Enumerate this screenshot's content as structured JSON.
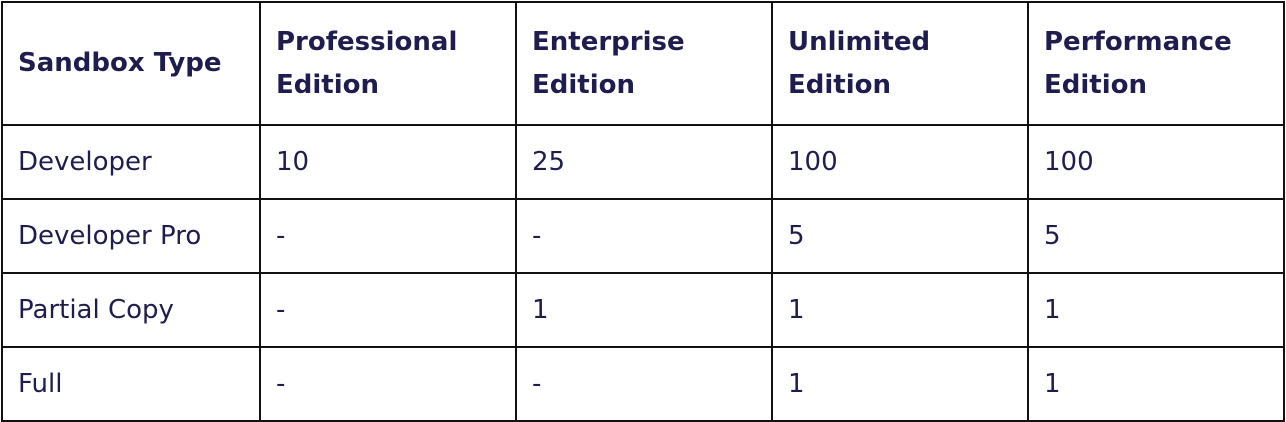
{
  "table": {
    "headers": [
      "Sandbox Type",
      "Professional Edition",
      "Enterprise Edition",
      "Unlimited Edition",
      "Performance Edition"
    ],
    "rows": [
      [
        "Developer",
        "10",
        "25",
        "100",
        "100"
      ],
      [
        "Developer Pro",
        "-",
        "-",
        "5",
        "5"
      ],
      [
        "Partial Copy",
        "-",
        "1",
        "1",
        "1"
      ],
      [
        "Full",
        "-",
        "-",
        "1",
        "1"
      ]
    ]
  },
  "colors": {
    "text": "#1f1d4d",
    "border": "#111111",
    "background": "#ffffff"
  }
}
